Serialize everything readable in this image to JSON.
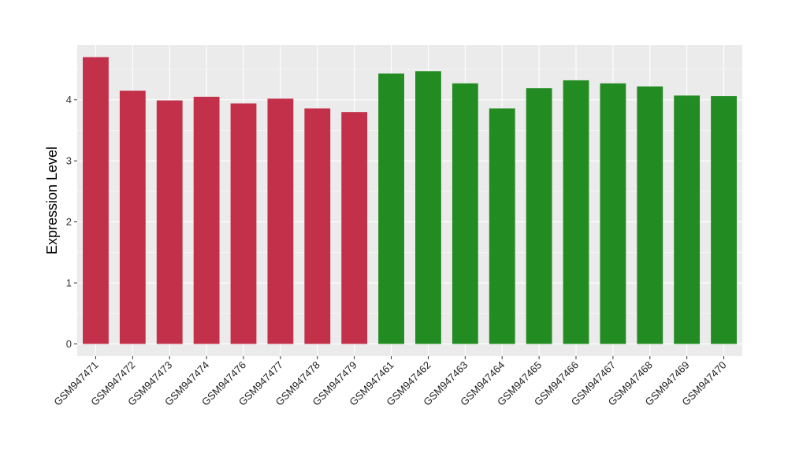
{
  "chart_data": {
    "type": "bar",
    "title": "",
    "xlabel": "",
    "ylabel": "Expression Level",
    "ylim": [
      -0.2,
      4.9
    ],
    "yticks": [
      0,
      1,
      2,
      3,
      4
    ],
    "grid": true,
    "background": "#EBEBEB",
    "gridline_color": "#FFFFFF",
    "categories": [
      "GSM947471",
      "GSM947472",
      "GSM947473",
      "GSM947474",
      "GSM947476",
      "GSM947477",
      "GSM947478",
      "GSM947479",
      "GSM947461",
      "GSM947462",
      "GSM947463",
      "GSM947464",
      "GSM947465",
      "GSM947466",
      "GSM947467",
      "GSM947468",
      "GSM947469",
      "GSM947470"
    ],
    "values": [
      4.7,
      4.15,
      3.99,
      4.05,
      3.94,
      4.02,
      3.86,
      3.8,
      4.43,
      4.47,
      4.27,
      3.86,
      4.19,
      4.32,
      4.27,
      4.22,
      4.07,
      4.06
    ],
    "bar_colors": [
      "#C3304A",
      "#C3304A",
      "#C3304A",
      "#C3304A",
      "#C3304A",
      "#C3304A",
      "#C3304A",
      "#C3304A",
      "#228B22",
      "#228B22",
      "#228B22",
      "#228B22",
      "#228B22",
      "#228B22",
      "#228B22",
      "#228B22",
      "#228B22",
      "#228B22"
    ]
  }
}
